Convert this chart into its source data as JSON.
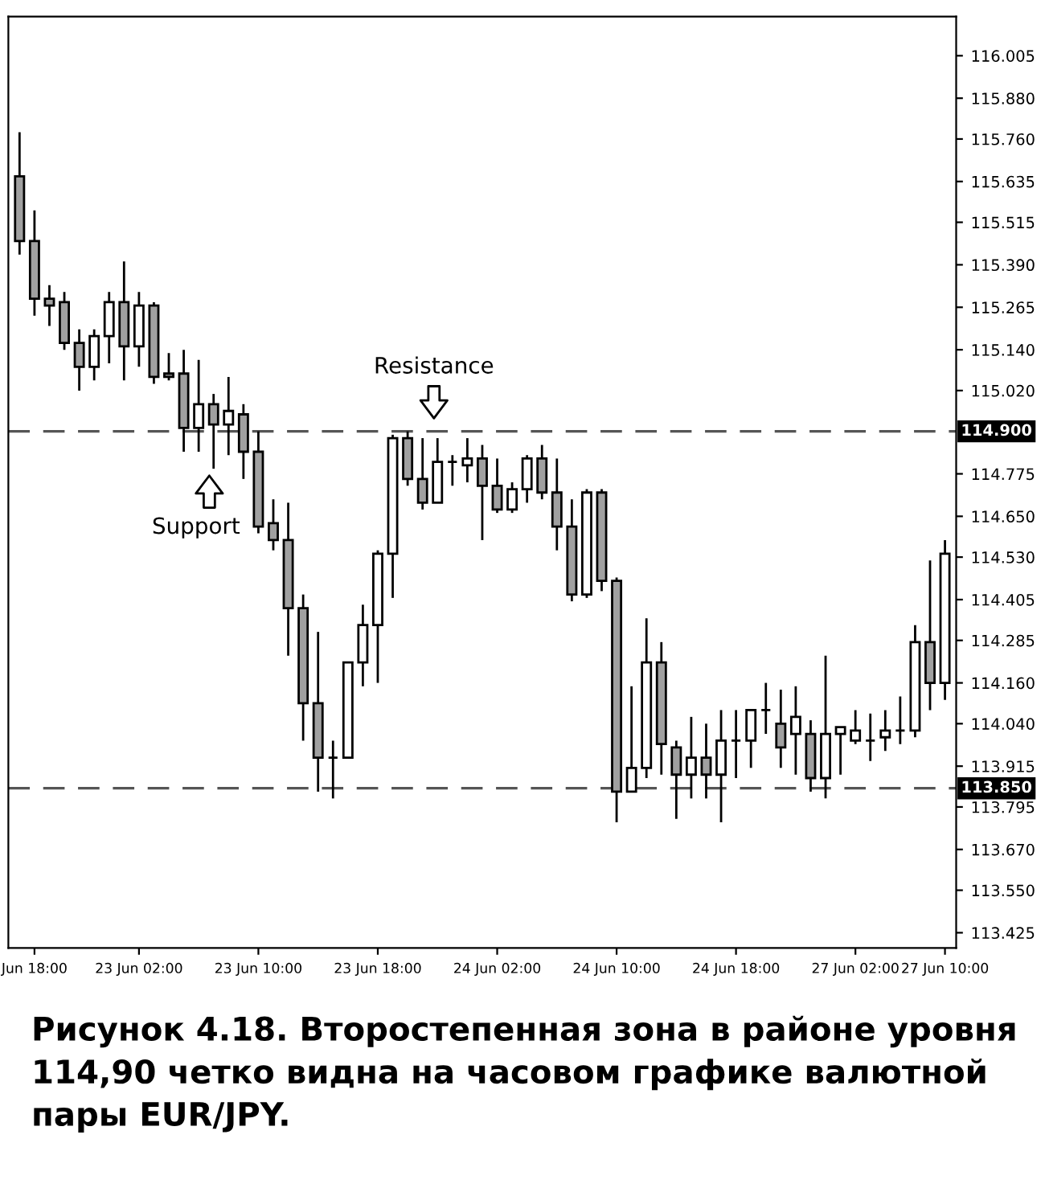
{
  "chart_data": {
    "type": "candlestick",
    "categories": [
      null,
      "Jun 18:00",
      null,
      null,
      null,
      null,
      null,
      null,
      "23 Jun 02:00",
      null,
      null,
      null,
      null,
      null,
      null,
      null,
      "23 Jun 10:00",
      null,
      null,
      null,
      null,
      null,
      null,
      null,
      "23 Jun 18:00",
      null,
      null,
      null,
      null,
      null,
      null,
      null,
      "24 Jun 02:00",
      null,
      null,
      null,
      null,
      null,
      null,
      null,
      "24 Jun 10:00",
      null,
      null,
      null,
      null,
      null,
      null,
      null,
      "24 Jun 18:00",
      null,
      null,
      null,
      null,
      null,
      null,
      null,
      "27 Jun 02:00",
      null,
      null,
      null,
      null,
      null,
      "27 Jun 10:00"
    ],
    "ohlc": [
      [
        115.65,
        115.78,
        115.42,
        115.46
      ],
      [
        115.46,
        115.55,
        115.24,
        115.29
      ],
      [
        115.29,
        115.33,
        115.21,
        115.27
      ],
      [
        115.28,
        115.31,
        115.14,
        115.16
      ],
      [
        115.16,
        115.2,
        115.02,
        115.09
      ],
      [
        115.09,
        115.2,
        115.05,
        115.18
      ],
      [
        115.18,
        115.31,
        115.1,
        115.28
      ],
      [
        115.28,
        115.4,
        115.05,
        115.15
      ],
      [
        115.15,
        115.31,
        115.09,
        115.27
      ],
      [
        115.27,
        115.28,
        115.04,
        115.06
      ],
      [
        115.07,
        115.13,
        115.05,
        115.06
      ],
      [
        115.07,
        115.14,
        114.84,
        114.91
      ],
      [
        114.91,
        115.11,
        114.84,
        114.98
      ],
      [
        114.98,
        115.01,
        114.79,
        114.92
      ],
      [
        114.92,
        115.06,
        114.83,
        114.96
      ],
      [
        114.95,
        114.98,
        114.76,
        114.84
      ],
      [
        114.84,
        114.9,
        114.6,
        114.62
      ],
      [
        114.63,
        114.7,
        114.55,
        114.58
      ],
      [
        114.58,
        114.69,
        114.24,
        114.38
      ],
      [
        114.38,
        114.42,
        113.99,
        114.1
      ],
      [
        114.1,
        114.31,
        113.84,
        113.94
      ],
      [
        113.94,
        113.99,
        113.82,
        113.94
      ],
      [
        113.94,
        114.22,
        113.94,
        114.22
      ],
      [
        114.22,
        114.39,
        114.15,
        114.33
      ],
      [
        114.33,
        114.55,
        114.16,
        114.54
      ],
      [
        114.54,
        114.89,
        114.41,
        114.88
      ],
      [
        114.88,
        114.9,
        114.74,
        114.76
      ],
      [
        114.76,
        114.88,
        114.67,
        114.69
      ],
      [
        114.69,
        114.88,
        114.69,
        114.81
      ],
      [
        114.81,
        114.83,
        114.74,
        114.81
      ],
      [
        114.8,
        114.88,
        114.75,
        114.82
      ],
      [
        114.82,
        114.86,
        114.58,
        114.74
      ],
      [
        114.74,
        114.82,
        114.66,
        114.67
      ],
      [
        114.67,
        114.75,
        114.66,
        114.73
      ],
      [
        114.73,
        114.83,
        114.69,
        114.82
      ],
      [
        114.82,
        114.86,
        114.7,
        114.72
      ],
      [
        114.72,
        114.82,
        114.55,
        114.62
      ],
      [
        114.62,
        114.7,
        114.4,
        114.42
      ],
      [
        114.42,
        114.73,
        114.41,
        114.72
      ],
      [
        114.72,
        114.73,
        114.43,
        114.46
      ],
      [
        114.46,
        114.47,
        113.75,
        113.84
      ],
      [
        113.84,
        114.15,
        113.84,
        113.91
      ],
      [
        113.91,
        114.35,
        113.88,
        114.22
      ],
      [
        114.22,
        114.28,
        113.89,
        113.98
      ],
      [
        113.97,
        113.99,
        113.76,
        113.89
      ],
      [
        113.89,
        114.06,
        113.82,
        113.94
      ],
      [
        113.94,
        114.04,
        113.82,
        113.89
      ],
      [
        113.89,
        114.08,
        113.75,
        113.99
      ],
      [
        113.99,
        114.08,
        113.88,
        113.99
      ],
      [
        113.99,
        114.08,
        113.91,
        114.08
      ],
      [
        114.08,
        114.16,
        114.01,
        114.08
      ],
      [
        114.04,
        114.14,
        113.91,
        113.97
      ],
      [
        114.01,
        114.15,
        113.89,
        114.06
      ],
      [
        114.01,
        114.05,
        113.84,
        113.88
      ],
      [
        113.88,
        114.24,
        113.82,
        114.01
      ],
      [
        114.01,
        114.03,
        113.89,
        114.03
      ],
      [
        113.99,
        114.08,
        113.98,
        114.02
      ],
      [
        113.99,
        114.07,
        113.93,
        113.99
      ],
      [
        114.0,
        114.08,
        113.96,
        114.02
      ],
      [
        114.02,
        114.12,
        113.98,
        114.02
      ],
      [
        114.02,
        114.33,
        114.0,
        114.28
      ],
      [
        114.28,
        114.52,
        114.08,
        114.16
      ],
      [
        114.16,
        114.58,
        114.11,
        114.54
      ]
    ],
    "colors": [
      "#a0a0a0",
      "#a0a0a0",
      "#a0a0a0",
      "#a0a0a0",
      "#a0a0a0",
      "#ffffff",
      "#ffffff",
      "#a0a0a0",
      "#ffffff",
      "#a0a0a0",
      "#a0a0a0",
      "#a0a0a0",
      "#ffffff",
      "#a0a0a0",
      "#ffffff",
      "#a0a0a0",
      "#a0a0a0",
      "#a0a0a0",
      "#a0a0a0",
      "#a0a0a0",
      "#a0a0a0",
      "#000000",
      "#ffffff",
      "#ffffff",
      "#ffffff",
      "#ffffff",
      "#a0a0a0",
      "#a0a0a0",
      "#ffffff",
      "#000000",
      "#ffffff",
      "#a0a0a0",
      "#a0a0a0",
      "#ffffff",
      "#ffffff",
      "#a0a0a0",
      "#a0a0a0",
      "#a0a0a0",
      "#ffffff",
      "#a0a0a0",
      "#a0a0a0",
      "#ffffff",
      "#ffffff",
      "#a0a0a0",
      "#a0a0a0",
      "#ffffff",
      "#a0a0a0",
      "#ffffff",
      "#000000",
      "#ffffff",
      "#000000",
      "#a0a0a0",
      "#ffffff",
      "#a0a0a0",
      "#ffffff",
      "#ffffff",
      "#ffffff",
      "#000000",
      "#ffffff",
      "#000000",
      "#ffffff",
      "#a0a0a0",
      "#ffffff"
    ],
    "ylim": [
      113.38,
      116.12
    ],
    "yticks": [
      {
        "value": 113.425,
        "label": "113.425"
      },
      {
        "value": 113.55,
        "label": "113.550"
      },
      {
        "value": 113.67,
        "label": "113.670"
      },
      {
        "value": 113.795,
        "label": "113.795"
      },
      {
        "value": 113.915,
        "label": "113.915"
      },
      {
        "value": 114.04,
        "label": "114.040"
      },
      {
        "value": 114.16,
        "label": "114.160"
      },
      {
        "value": 114.285,
        "label": "114.285"
      },
      {
        "value": 114.405,
        "label": "114.405"
      },
      {
        "value": 114.53,
        "label": "114.530"
      },
      {
        "value": 114.65,
        "label": "114.650"
      },
      {
        "value": 114.775,
        "label": "114.775"
      },
      {
        "value": 115.02,
        "label": "115.020"
      },
      {
        "value": 115.14,
        "label": "115.140"
      },
      {
        "value": 115.265,
        "label": "115.265"
      },
      {
        "value": 115.39,
        "label": "115.390"
      },
      {
        "value": 115.515,
        "label": "115.515"
      },
      {
        "value": 115.635,
        "label": "115.635"
      },
      {
        "value": 115.76,
        "label": "115.760"
      },
      {
        "value": 115.88,
        "label": "115.880"
      },
      {
        "value": 116.005,
        "label": "116.005"
      }
    ],
    "ref_lines": [
      {
        "axis": "y",
        "value": 114.9,
        "label": "114.900",
        "color": "#555555",
        "line_style": "dashed"
      },
      {
        "axis": "y",
        "value": 113.85,
        "label": "113.850",
        "color": "#555555",
        "line_style": "dashed"
      }
    ],
    "grid": false,
    "annotations": [
      "Resistance",
      "Support",
      "Рисунок 4.18. Второстепенная зона в районе уровня 114,90 четко видна на часовом графике валютной пары EUR/JPY."
    ]
  }
}
